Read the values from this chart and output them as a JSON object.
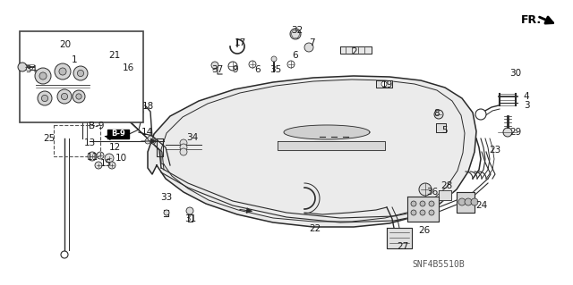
{
  "bg_color": "#f5f5f0",
  "diagram_code": "SNF4B5510B",
  "line_color": "#2a2a2a",
  "text_color": "#1a1a1a",
  "font_size": 7.5,
  "figsize": [
    6.4,
    3.19
  ],
  "dpi": 100,
  "trunk_outer": {
    "x": [
      175,
      185,
      205,
      230,
      265,
      305,
      350,
      395,
      435,
      465,
      490,
      510,
      523,
      530,
      532,
      528,
      516,
      497,
      470,
      435,
      395,
      350,
      305,
      262,
      222,
      190,
      172,
      165,
      165,
      170,
      175
    ],
    "y": [
      185,
      200,
      215,
      228,
      240,
      249,
      254,
      254,
      250,
      242,
      229,
      212,
      192,
      170,
      147,
      126,
      110,
      98,
      90,
      86,
      85,
      87,
      92,
      100,
      113,
      130,
      150,
      170,
      188,
      195,
      185
    ]
  },
  "trunk_inner": {
    "x": [
      183,
      192,
      210,
      233,
      266,
      305,
      350,
      393,
      430,
      458,
      481,
      499,
      511,
      517,
      519,
      515,
      505,
      488,
      463,
      430,
      393,
      350,
      308,
      268,
      232,
      204,
      186,
      180,
      180,
      183
    ],
    "y": [
      184,
      197,
      211,
      224,
      235,
      244,
      248,
      248,
      244,
      237,
      225,
      209,
      191,
      171,
      149,
      129,
      113,
      101,
      94,
      90,
      89,
      91,
      96,
      104,
      116,
      131,
      149,
      167,
      183,
      184
    ]
  },
  "labels": [
    [
      55,
      155,
      "25"
    ],
    [
      213,
      245,
      "31"
    ],
    [
      186,
      221,
      "33"
    ],
    [
      352,
      256,
      "22"
    ],
    [
      450,
      276,
      "27"
    ],
    [
      474,
      258,
      "26"
    ],
    [
      538,
      230,
      "24"
    ],
    [
      483,
      215,
      "36"
    ],
    [
      499,
      208,
      "28"
    ],
    [
      553,
      168,
      "23"
    ],
    [
      103,
      176,
      "11"
    ],
    [
      118,
      183,
      "15"
    ],
    [
      135,
      177,
      "10"
    ],
    [
      128,
      165,
      "12"
    ],
    [
      100,
      160,
      "13"
    ],
    [
      164,
      148,
      "14"
    ],
    [
      215,
      154,
      "34"
    ],
    [
      108,
      141,
      "B-9"
    ],
    [
      165,
      119,
      "18"
    ],
    [
      243,
      78,
      "37"
    ],
    [
      263,
      78,
      "9"
    ],
    [
      288,
      78,
      "6"
    ],
    [
      308,
      78,
      "35"
    ],
    [
      330,
      62,
      "6"
    ],
    [
      268,
      48,
      "17"
    ],
    [
      332,
      34,
      "32"
    ],
    [
      348,
      48,
      "7"
    ],
    [
      396,
      58,
      "2"
    ],
    [
      432,
      95,
      "19"
    ],
    [
      496,
      146,
      "5"
    ],
    [
      488,
      127,
      "8"
    ],
    [
      576,
      148,
      "29"
    ],
    [
      588,
      118,
      "3"
    ],
    [
      588,
      108,
      "4"
    ],
    [
      576,
      82,
      "30"
    ],
    [
      35,
      78,
      "34"
    ],
    [
      73,
      50,
      "20"
    ],
    [
      128,
      62,
      "21"
    ],
    [
      143,
      76,
      "16"
    ],
    [
      83,
      67,
      "1"
    ]
  ]
}
